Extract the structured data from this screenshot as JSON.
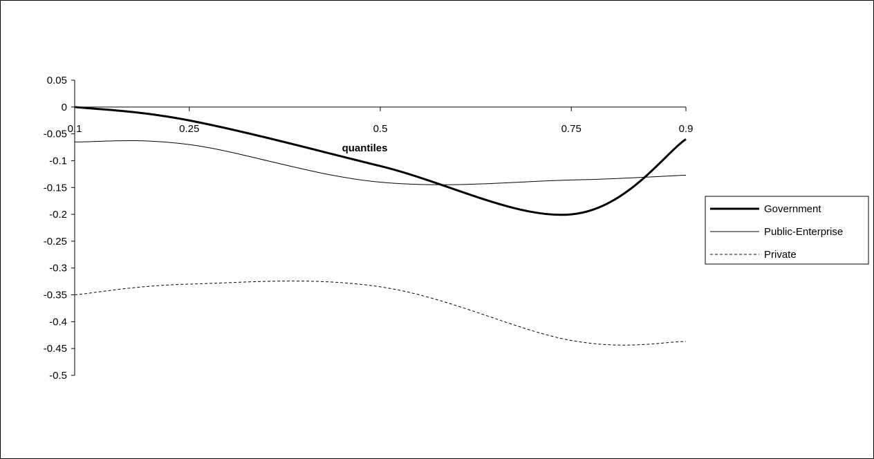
{
  "chart_data": {
    "type": "line",
    "title": "",
    "xlabel": "quantiles",
    "ylabel": "",
    "x": [
      0.1,
      0.25,
      0.5,
      0.75,
      0.9
    ],
    "x_tick_labels": [
      "0.1",
      "0.25",
      "0.5",
      "0.75",
      "0.9"
    ],
    "ylim": [
      -0.5,
      0.05
    ],
    "y_ticks": [
      0.05,
      0,
      -0.05,
      -0.1,
      -0.15,
      -0.2,
      -0.25,
      -0.3,
      -0.35,
      -0.4,
      -0.45,
      -0.5
    ],
    "y_tick_labels": [
      "0.05",
      "0",
      "-0.05",
      "-0.1",
      "-0.15",
      "-0.2",
      "-0.25",
      "-0.3",
      "-0.35",
      "-0.4",
      "-0.45",
      "-0.5"
    ],
    "grid": false,
    "legend_position": "right",
    "series": [
      {
        "name": "Government",
        "values": [
          0,
          -0.025,
          -0.11,
          -0.2,
          -0.06
        ],
        "style": "thick-solid",
        "color": "#000000"
      },
      {
        "name": "Public-Enterprise",
        "values": [
          -0.065,
          -0.07,
          -0.14,
          -0.136,
          -0.127
        ],
        "style": "thin-solid",
        "color": "#000000"
      },
      {
        "name": "Private",
        "values": [
          -0.35,
          -0.33,
          -0.335,
          -0.435,
          -0.437
        ],
        "style": "dashed",
        "color": "#000000"
      }
    ]
  }
}
